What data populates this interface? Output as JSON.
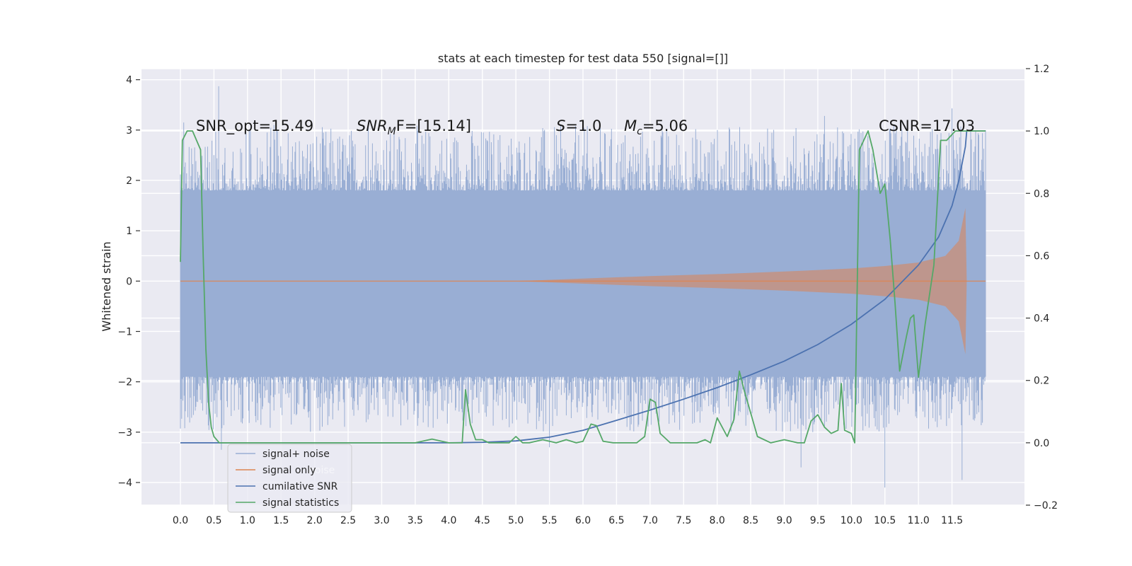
{
  "chart_data": {
    "type": "line",
    "title": "stats at each timestep for test data 550 [signal=[]]",
    "xlabel": "",
    "ylabel": "Whitened strain",
    "y2label": "",
    "xlim": [
      -0.58,
      12.58
    ],
    "ylim": [
      -4.45,
      4.22
    ],
    "y2lim": [
      -0.2,
      1.2
    ],
    "x_ticks": [
      0.0,
      0.5,
      1.0,
      1.5,
      2.0,
      2.5,
      3.0,
      3.5,
      4.0,
      4.5,
      5.0,
      5.5,
      6.0,
      6.5,
      7.0,
      7.5,
      8.0,
      8.5,
      9.0,
      9.5,
      10.0,
      10.5,
      11.0,
      11.5
    ],
    "x_tick_labels": [
      "0.0",
      "0.5",
      "1.0",
      "1.5",
      "2.0",
      "2.5",
      "3.0",
      "3.5",
      "4.0",
      "4.5",
      "5.0",
      "5.5",
      "6.0",
      "6.5",
      "7.0",
      "7.5",
      "8.0",
      "8.5",
      "9.0",
      "9.5",
      "10.0",
      "10.5",
      "11.0",
      "11.5"
    ],
    "y_ticks": [
      -4,
      -3,
      -2,
      -1,
      0,
      1,
      2,
      3,
      4
    ],
    "y_tick_labels": [
      "−4",
      "−3",
      "−2",
      "−1",
      "0",
      "1",
      "2",
      "3",
      "4"
    ],
    "y2_ticks": [
      -0.2,
      0.0,
      0.2,
      0.4,
      0.6,
      0.8,
      1.0,
      1.2
    ],
    "y2_tick_labels": [
      "−0.2",
      "0.0",
      "0.2",
      "0.4",
      "0.6",
      "0.8",
      "1.0",
      "1.2"
    ],
    "grid": true,
    "legend_position": "lower-left",
    "colors": {
      "background": "#eaeaf2",
      "grid": "#ffffff",
      "noise": "#99aed4",
      "signal": "#dd8452",
      "csnr": "#4c72b0",
      "stats": "#55a868"
    },
    "series": [
      {
        "name": "signal+ noise",
        "axis": "left",
        "style": "noise-band",
        "x_range": [
          0.0,
          12.0
        ],
        "envelope_upper": 1.8,
        "envelope_lower": -1.9,
        "spike_peaks": [
          {
            "x": 0.05,
            "y": 3.15
          },
          {
            "x": 0.57,
            "y": 3.87
          },
          {
            "x": 0.61,
            "y": -3.35
          },
          {
            "x": 2.8,
            "y": 3.05
          },
          {
            "x": 5.5,
            "y": -3.3
          },
          {
            "x": 9.6,
            "y": 3.28
          },
          {
            "x": 9.25,
            "y": -3.7
          },
          {
            "x": 10.5,
            "y": -4.1
          },
          {
            "x": 11.5,
            "y": 3.43
          },
          {
            "x": 11.65,
            "y": -3.95
          }
        ]
      },
      {
        "name": "signal only",
        "axis": "left",
        "style": "chirp",
        "x": [
          0.0,
          5.0,
          6.0,
          7.0,
          8.0,
          9.0,
          10.0,
          10.5,
          11.0,
          11.4,
          11.6,
          11.7,
          11.72,
          12.0
        ],
        "amplitude": [
          0.0,
          0.0,
          0.05,
          0.1,
          0.14,
          0.19,
          0.25,
          0.3,
          0.37,
          0.5,
          0.8,
          1.45,
          0.0,
          0.0
        ]
      },
      {
        "name": "cumilative SNR",
        "axis": "right",
        "style": "line",
        "x": [
          0.0,
          4.0,
          4.5,
          5.0,
          5.5,
          6.0,
          6.5,
          7.0,
          7.5,
          8.0,
          8.5,
          9.0,
          9.5,
          10.0,
          10.5,
          11.0,
          11.3,
          11.5,
          11.6,
          11.7,
          11.72,
          12.0
        ],
        "y": [
          0.0,
          0.0,
          0.0015,
          0.006,
          0.018,
          0.04,
          0.072,
          0.105,
          0.14,
          0.177,
          0.218,
          0.262,
          0.315,
          0.38,
          0.46,
          0.57,
          0.66,
          0.76,
          0.84,
          0.95,
          1.0,
          1.0
        ]
      },
      {
        "name": "signal statistics",
        "axis": "right",
        "style": "line",
        "x": [
          0.0,
          0.03,
          0.1,
          0.18,
          0.3,
          0.34,
          0.38,
          0.42,
          0.46,
          0.5,
          0.58,
          0.7,
          1.0,
          1.4,
          2.0,
          3.0,
          3.5,
          3.75,
          4.0,
          4.2,
          4.25,
          4.32,
          4.4,
          4.5,
          4.6,
          4.8,
          4.9,
          5.0,
          5.1,
          5.2,
          5.4,
          5.6,
          5.75,
          5.9,
          6.0,
          6.12,
          6.2,
          6.3,
          6.45,
          6.6,
          6.8,
          6.92,
          7.0,
          7.08,
          7.15,
          7.3,
          7.5,
          7.7,
          7.82,
          7.9,
          8.0,
          8.15,
          8.25,
          8.33,
          8.4,
          8.6,
          8.8,
          9.0,
          9.2,
          9.3,
          9.4,
          9.5,
          9.6,
          9.7,
          9.8,
          9.85,
          9.9,
          10.0,
          10.05,
          10.12,
          10.25,
          10.32,
          10.43,
          10.5,
          10.58,
          10.65,
          10.72,
          10.82,
          10.88,
          10.93,
          11.0,
          11.1,
          11.23,
          11.33,
          11.42,
          11.55,
          11.65,
          11.8,
          12.0
        ],
        "y": [
          0.58,
          0.97,
          1.0,
          1.0,
          0.94,
          0.6,
          0.3,
          0.13,
          0.05,
          0.02,
          0.0,
          0.0,
          0.0,
          0.0,
          0.0,
          0.0,
          0.0,
          0.012,
          0.0,
          0.0,
          0.17,
          0.06,
          0.01,
          0.01,
          0.0,
          0.0,
          0.0,
          0.02,
          0.0,
          0.0,
          0.01,
          0.0,
          0.01,
          0.0,
          0.005,
          0.06,
          0.055,
          0.005,
          0.0,
          0.0,
          0.0,
          0.02,
          0.14,
          0.13,
          0.03,
          0.0,
          0.0,
          0.0,
          0.01,
          0.0,
          0.08,
          0.02,
          0.075,
          0.23,
          0.17,
          0.02,
          0.0,
          0.01,
          0.0,
          0.0,
          0.07,
          0.09,
          0.05,
          0.03,
          0.04,
          0.19,
          0.04,
          0.03,
          0.0,
          0.94,
          1.0,
          0.94,
          0.8,
          0.83,
          0.65,
          0.45,
          0.23,
          0.34,
          0.4,
          0.41,
          0.21,
          0.38,
          0.57,
          0.97,
          0.97,
          1.0,
          1.0,
          1.0,
          1.0
        ]
      }
    ],
    "annotations": {
      "snr_opt": "SNR_opt=15.49",
      "snr_mf_var": "SNR",
      "snr_mf_sub": "M",
      "snr_mf_rest": "F=[15.14]",
      "s_var": "S",
      "s_rest": "=1.0",
      "mc_var": "M",
      "mc_sub": "c",
      "mc_rest": "=5.06",
      "csnr": "CSNR=17.03"
    },
    "legend": {
      "ghost_text": "noise"
    }
  }
}
